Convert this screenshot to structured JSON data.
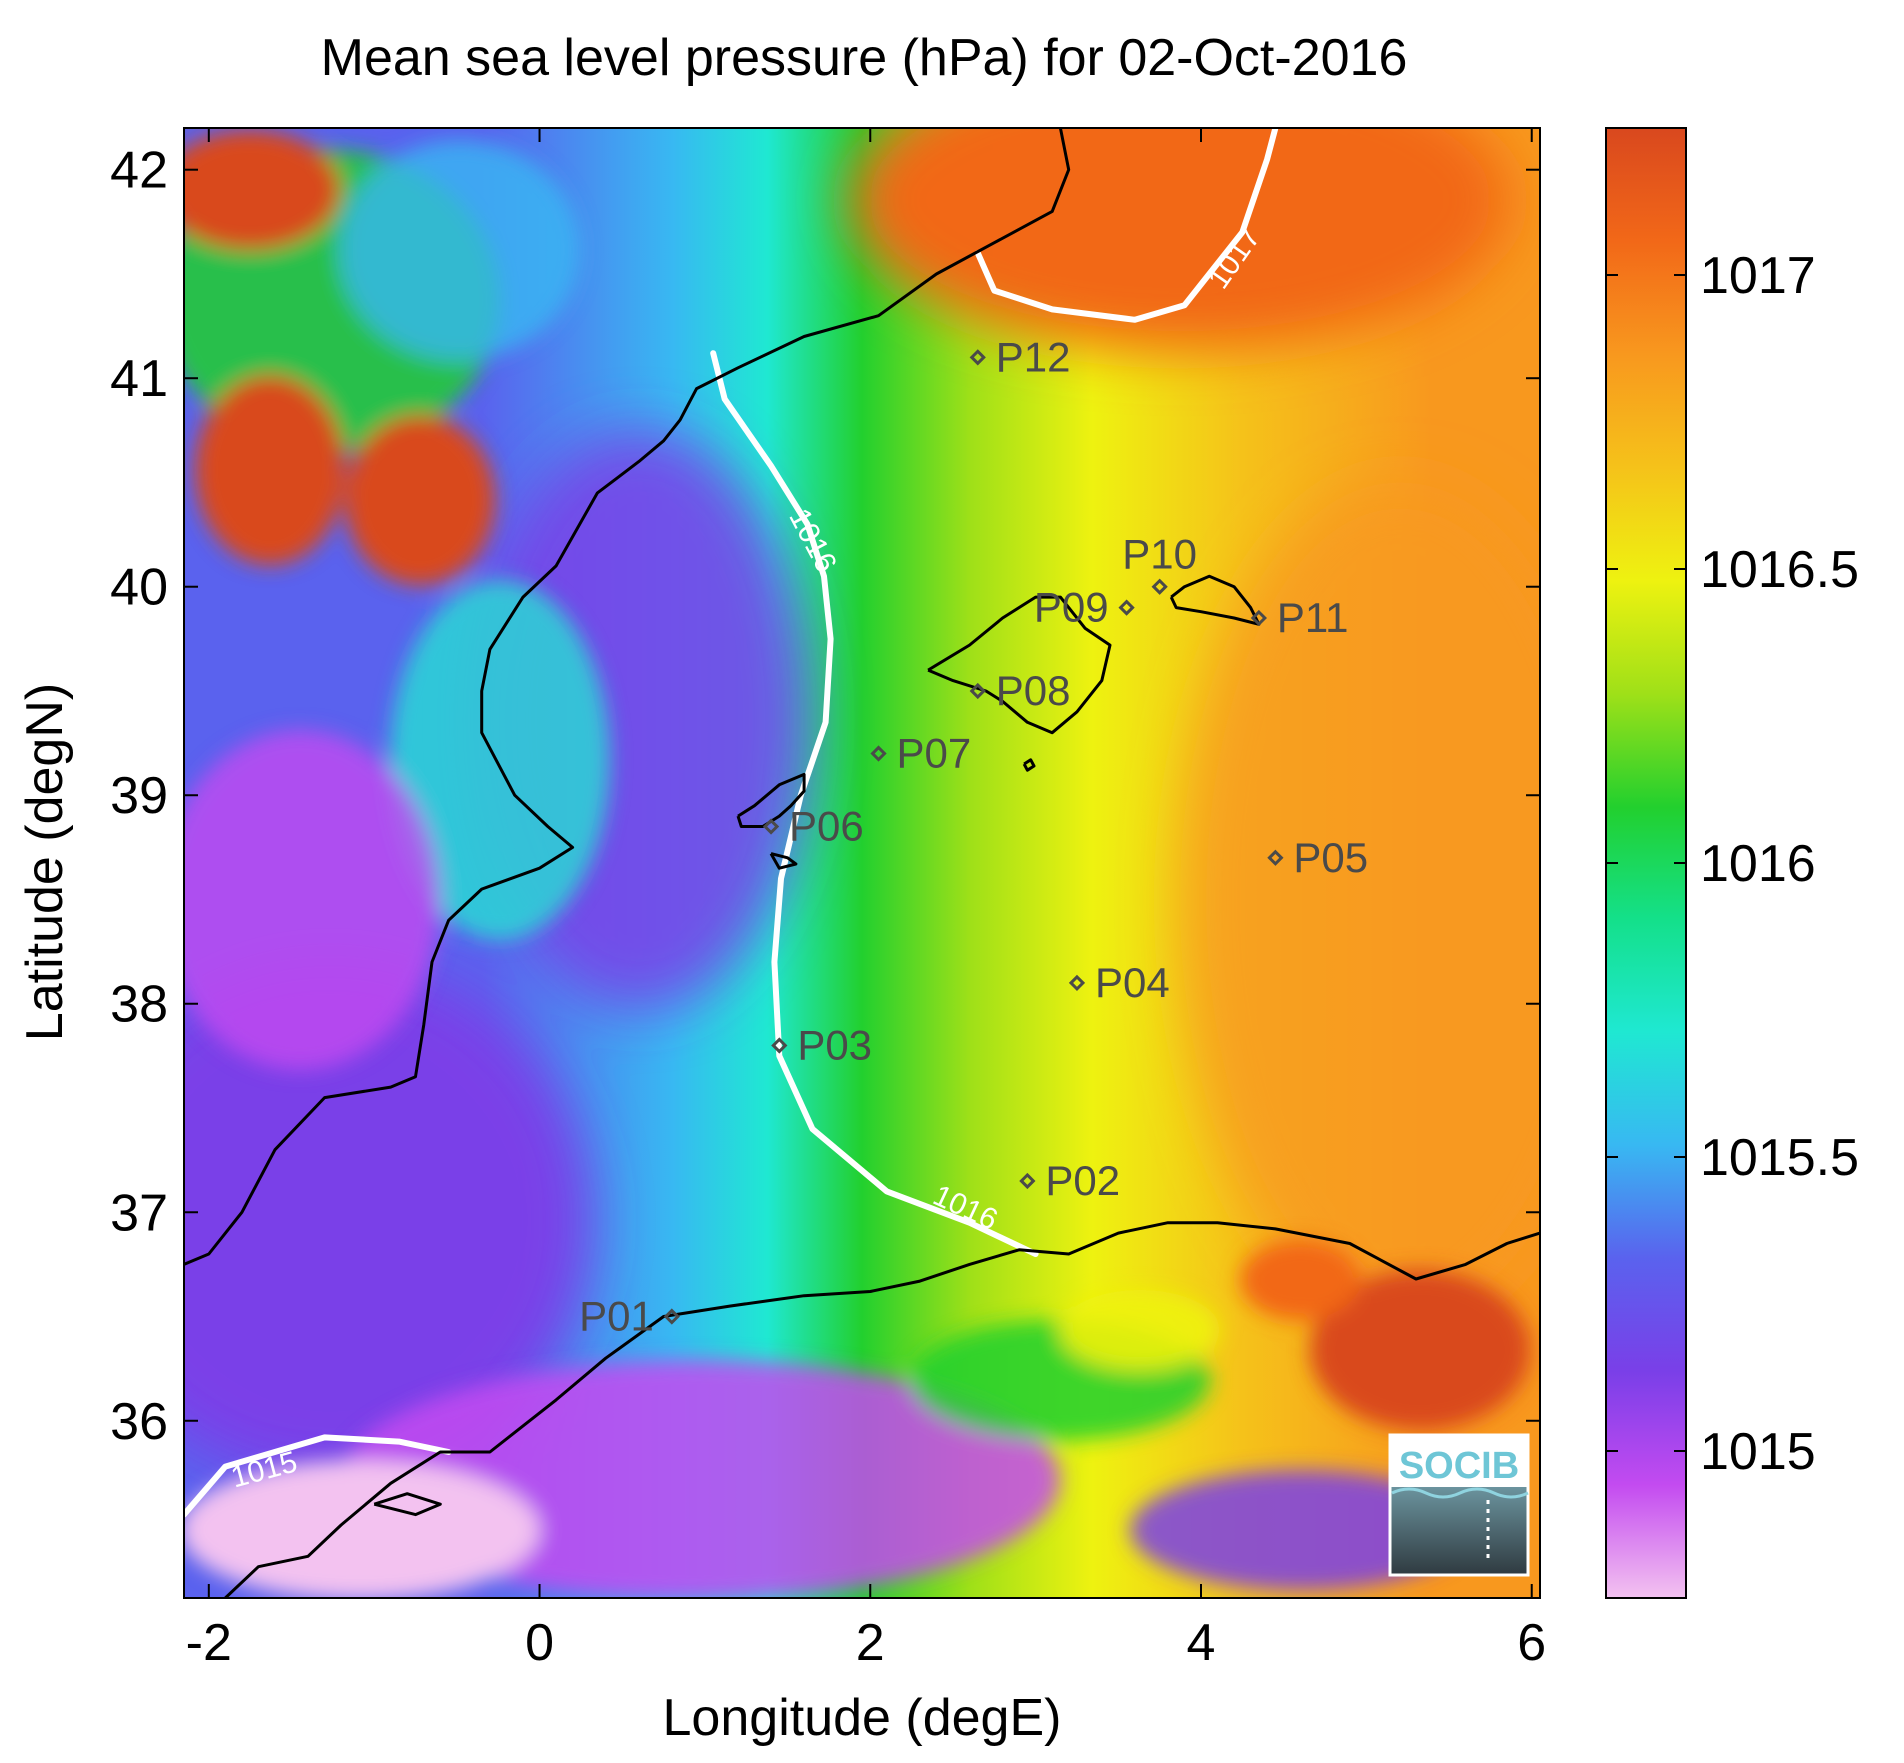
{
  "chart_data": {
    "type": "heatmap",
    "title": "Mean sea level pressure (hPa) for 02-Oct-2016",
    "xlabel": "Longitude (degE)",
    "ylabel": "Latitude (degN)",
    "xlim": [
      -2.15,
      6.05
    ],
    "ylim": [
      35.15,
      42.2
    ],
    "x_ticks": [
      -2,
      0,
      2,
      4,
      6
    ],
    "x_tick_labels": [
      "-2",
      "0",
      "2",
      "4",
      "6"
    ],
    "y_ticks": [
      36,
      37,
      38,
      39,
      40,
      41,
      42
    ],
    "y_tick_labels": [
      "36",
      "37",
      "38",
      "39",
      "40",
      "41",
      "42"
    ],
    "colorbar": {
      "range": [
        1014.75,
        1017.25
      ],
      "ticks": [
        1015,
        1015.5,
        1016,
        1016.5,
        1017
      ],
      "tick_labels": [
        "1015",
        "1015.5",
        "1016",
        "1016.5",
        "1017"
      ],
      "colormap": [
        "#f3c2f0",
        "#c34bf0",
        "#7a3fe8",
        "#5a62ee",
        "#38b8f2",
        "#1fe8d2",
        "#14e08a",
        "#22d02e",
        "#9fe018",
        "#eef210",
        "#f5c21a",
        "#f8981e",
        "#f26818",
        "#d9481e"
      ]
    },
    "contours": [
      {
        "label": "1015",
        "points": [
          [
            -2.15,
            35.55
          ],
          [
            -1.9,
            35.78
          ],
          [
            -1.3,
            35.92
          ],
          [
            -0.85,
            35.9
          ],
          [
            -0.55,
            35.85
          ]
        ]
      },
      {
        "label": "1016",
        "points": [
          [
            1.05,
            41.12
          ],
          [
            1.12,
            40.9
          ],
          [
            1.4,
            40.58
          ],
          [
            1.62,
            40.3
          ],
          [
            1.72,
            40.05
          ],
          [
            1.76,
            39.75
          ],
          [
            1.73,
            39.35
          ],
          [
            1.58,
            39.0
          ],
          [
            1.46,
            38.6
          ],
          [
            1.42,
            38.2
          ],
          [
            1.45,
            37.75
          ],
          [
            1.65,
            37.4
          ],
          [
            2.1,
            37.1
          ],
          [
            2.6,
            36.95
          ],
          [
            3.0,
            36.8
          ]
        ]
      },
      {
        "label": "1017",
        "points": [
          [
            2.65,
            41.6
          ],
          [
            2.75,
            41.42
          ],
          [
            3.1,
            41.33
          ],
          [
            3.6,
            41.28
          ],
          [
            3.9,
            41.35
          ],
          [
            4.25,
            41.7
          ],
          [
            4.4,
            42.05
          ],
          [
            4.45,
            42.2
          ]
        ]
      }
    ],
    "contour_labels": [
      {
        "text": "1015",
        "x": -1.65,
        "y": 35.72,
        "angle": -15
      },
      {
        "text": "1016",
        "x": 1.6,
        "y": 40.2,
        "angle": 62
      },
      {
        "text": "1016",
        "x": 2.55,
        "y": 36.98,
        "angle": 25
      },
      {
        "text": "1017",
        "x": 4.25,
        "y": 41.55,
        "angle": -55
      }
    ],
    "points": [
      {
        "name": "P01",
        "lon": 0.8,
        "lat": 36.5,
        "label_side": "left"
      },
      {
        "name": "P02",
        "lon": 2.95,
        "lat": 37.15,
        "label_side": "right"
      },
      {
        "name": "P03",
        "lon": 1.45,
        "lat": 37.8,
        "label_side": "right"
      },
      {
        "name": "P04",
        "lon": 3.25,
        "lat": 38.1,
        "label_side": "right"
      },
      {
        "name": "P05",
        "lon": 4.45,
        "lat": 38.7,
        "label_side": "right"
      },
      {
        "name": "P06",
        "lon": 1.4,
        "lat": 38.85,
        "label_side": "right"
      },
      {
        "name": "P07",
        "lon": 2.05,
        "lat": 39.2,
        "label_side": "right"
      },
      {
        "name": "P08",
        "lon": 2.65,
        "lat": 39.5,
        "label_side": "right"
      },
      {
        "name": "P09",
        "lon": 3.55,
        "lat": 39.9,
        "label_side": "left"
      },
      {
        "name": "P10",
        "lon": 3.75,
        "lat": 40.0,
        "label_side": "top"
      },
      {
        "name": "P11",
        "lon": 4.35,
        "lat": 39.85,
        "label_side": "right"
      },
      {
        "name": "P12",
        "lon": 2.65,
        "lat": 41.1,
        "label_side": "right"
      }
    ],
    "coastlines": [
      {
        "name": "iberia",
        "points": [
          [
            -2.15,
            36.75
          ],
          [
            -2.0,
            36.8
          ],
          [
            -1.8,
            37.0
          ],
          [
            -1.6,
            37.3
          ],
          [
            -1.3,
            37.55
          ],
          [
            -0.9,
            37.6
          ],
          [
            -0.75,
            37.65
          ],
          [
            -0.7,
            37.9
          ],
          [
            -0.65,
            38.2
          ],
          [
            -0.55,
            38.4
          ],
          [
            -0.35,
            38.55
          ],
          [
            0.0,
            38.65
          ],
          [
            0.2,
            38.75
          ],
          [
            0.05,
            38.85
          ],
          [
            -0.15,
            39.0
          ],
          [
            -0.35,
            39.3
          ],
          [
            -0.35,
            39.5
          ],
          [
            -0.3,
            39.7
          ],
          [
            -0.1,
            39.95
          ],
          [
            0.1,
            40.1
          ],
          [
            0.35,
            40.45
          ],
          [
            0.6,
            40.6
          ],
          [
            0.75,
            40.7
          ],
          [
            0.85,
            40.8
          ],
          [
            0.95,
            40.95
          ],
          [
            1.2,
            41.05
          ],
          [
            1.6,
            41.2
          ],
          [
            2.05,
            41.3
          ],
          [
            2.4,
            41.5
          ],
          [
            2.75,
            41.65
          ],
          [
            3.1,
            41.8
          ],
          [
            3.2,
            42.0
          ],
          [
            3.15,
            42.2
          ]
        ]
      },
      {
        "name": "africa",
        "points": [
          [
            -1.9,
            35.15
          ],
          [
            -1.7,
            35.3
          ],
          [
            -1.4,
            35.35
          ],
          [
            -1.2,
            35.5
          ],
          [
            -0.9,
            35.7
          ],
          [
            -0.6,
            35.85
          ],
          [
            -0.3,
            35.85
          ],
          [
            0.1,
            36.1
          ],
          [
            0.4,
            36.3
          ],
          [
            0.75,
            36.5
          ],
          [
            1.15,
            36.55
          ],
          [
            1.6,
            36.6
          ],
          [
            2.0,
            36.62
          ],
          [
            2.3,
            36.67
          ],
          [
            2.6,
            36.75
          ],
          [
            2.9,
            36.82
          ],
          [
            3.2,
            36.8
          ],
          [
            3.5,
            36.9
          ],
          [
            3.8,
            36.95
          ],
          [
            4.1,
            36.95
          ],
          [
            4.45,
            36.92
          ],
          [
            4.9,
            36.85
          ],
          [
            5.3,
            36.68
          ],
          [
            5.6,
            36.75
          ],
          [
            5.85,
            36.85
          ],
          [
            6.05,
            36.9
          ]
        ]
      },
      {
        "name": "ibiza",
        "points": [
          [
            1.2,
            38.9
          ],
          [
            1.3,
            38.95
          ],
          [
            1.45,
            39.05
          ],
          [
            1.6,
            39.1
          ],
          [
            1.6,
            39.02
          ],
          [
            1.52,
            38.95
          ],
          [
            1.45,
            38.9
          ],
          [
            1.35,
            38.85
          ],
          [
            1.22,
            38.85
          ],
          [
            1.2,
            38.9
          ]
        ]
      },
      {
        "name": "formentera",
        "points": [
          [
            1.4,
            38.72
          ],
          [
            1.5,
            38.7
          ],
          [
            1.55,
            38.67
          ],
          [
            1.45,
            38.65
          ],
          [
            1.4,
            38.72
          ]
        ]
      },
      {
        "name": "mallorca",
        "points": [
          [
            2.35,
            39.6
          ],
          [
            2.5,
            39.55
          ],
          [
            2.7,
            39.5
          ],
          [
            2.8,
            39.45
          ],
          [
            2.95,
            39.35
          ],
          [
            3.1,
            39.3
          ],
          [
            3.25,
            39.4
          ],
          [
            3.4,
            39.55
          ],
          [
            3.45,
            39.72
          ],
          [
            3.3,
            39.8
          ],
          [
            3.2,
            39.9
          ],
          [
            3.15,
            39.95
          ],
          [
            3.0,
            39.95
          ],
          [
            2.8,
            39.85
          ],
          [
            2.6,
            39.72
          ],
          [
            2.35,
            39.6
          ]
        ]
      },
      {
        "name": "cabrera",
        "points": [
          [
            2.93,
            39.15
          ],
          [
            2.97,
            39.17
          ],
          [
            2.99,
            39.14
          ],
          [
            2.95,
            39.12
          ],
          [
            2.93,
            39.15
          ]
        ]
      },
      {
        "name": "menorca",
        "points": [
          [
            3.82,
            39.95
          ],
          [
            3.9,
            40.0
          ],
          [
            4.05,
            40.05
          ],
          [
            4.2,
            40.0
          ],
          [
            4.3,
            39.9
          ],
          [
            4.35,
            39.82
          ],
          [
            4.2,
            39.85
          ],
          [
            4.0,
            39.88
          ],
          [
            3.85,
            39.9
          ],
          [
            3.82,
            39.95
          ]
        ]
      },
      {
        "name": "chafarinas",
        "points": [
          [
            -1.0,
            35.6
          ],
          [
            -0.8,
            35.65
          ],
          [
            -0.6,
            35.6
          ],
          [
            -0.75,
            35.55
          ],
          [
            -1.0,
            35.6
          ]
        ]
      }
    ]
  },
  "logo": {
    "text": "SOCIB"
  }
}
